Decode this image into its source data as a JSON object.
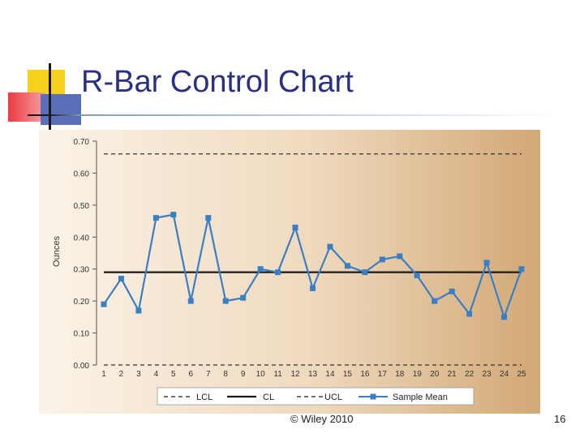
{
  "slide": {
    "title": "R-Bar Control Chart",
    "footer": "© Wiley 2010",
    "page_number": "16"
  },
  "colors": {
    "title": "#2a2f86",
    "series": "#3a7fc4",
    "cl": "#1a1a1a",
    "limits": "#333333",
    "panel_light": "#fbf3e8",
    "panel_dark": "#d2a876"
  },
  "chart_data": {
    "type": "line",
    "ylabel": "Ounces",
    "xlabel": "",
    "ylim": [
      0,
      0.7
    ],
    "yticks": [
      "0.00",
      "0.10",
      "0.20",
      "0.30",
      "0.40",
      "0.50",
      "0.60",
      "0.70"
    ],
    "x": [
      1,
      2,
      3,
      4,
      5,
      6,
      7,
      8,
      9,
      10,
      11,
      12,
      13,
      14,
      15,
      16,
      17,
      18,
      19,
      20,
      21,
      22,
      23,
      24,
      25
    ],
    "series": [
      {
        "name": "Sample Mean",
        "values": [
          0.19,
          0.27,
          0.17,
          0.46,
          0.47,
          0.2,
          0.46,
          0.2,
          0.21,
          0.3,
          0.29,
          0.43,
          0.24,
          0.37,
          0.31,
          0.29,
          0.33,
          0.34,
          0.28,
          0.2,
          0.23,
          0.16,
          0.32,
          0.15,
          0.3
        ]
      }
    ],
    "limits": {
      "LCL": 0.0,
      "CL": 0.29,
      "UCL": 0.66
    },
    "legend": {
      "placement": "bottom",
      "entries": [
        "LCL",
        "CL",
        "UCL",
        "Sample Mean"
      ]
    },
    "grid": false
  }
}
